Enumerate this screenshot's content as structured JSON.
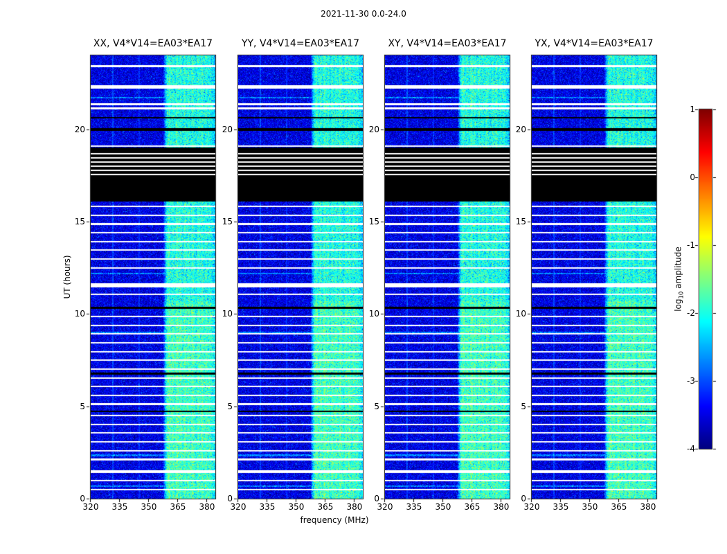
{
  "figure": {
    "title": "2021-11-30 0.0-24.0"
  },
  "chart_data": {
    "type": "heatmap",
    "title": "2021-11-30 0.0-24.0",
    "panels": [
      {
        "id": "XX",
        "title": "XX, V4*V14=EA03*EA17"
      },
      {
        "id": "YY",
        "title": "YY, V4*V14=EA03*EA17"
      },
      {
        "id": "XY",
        "title": "XY, V4*V14=EA03*EA17"
      },
      {
        "id": "YX",
        "title": "YX, V4*V14=EA03*EA17"
      }
    ],
    "x": {
      "label": "frequency (MHz)",
      "range": [
        320,
        384.3
      ],
      "ticks": [
        320,
        335,
        350,
        365,
        380
      ],
      "tick_labels": [
        "320",
        "335",
        "350",
        "365",
        "380"
      ]
    },
    "y": {
      "label": "UT (hours)",
      "range": [
        0,
        24
      ],
      "ticks": [
        0,
        5,
        10,
        15,
        20
      ],
      "tick_labels": [
        "0",
        "5",
        "10",
        "15",
        "20"
      ]
    },
    "colorbar": {
      "label": "log10 amplitude",
      "label_pre": "log",
      "label_sub": "10",
      "label_post": " amplitude",
      "range": [
        -4,
        1
      ],
      "ticks": [
        1,
        0,
        -1,
        -2,
        -3,
        -4
      ],
      "tick_labels": [
        "1",
        "0",
        "-1",
        "-2",
        "-3",
        "-4"
      ],
      "colormap": "jet"
    },
    "background_level": {
      "mean": -3.5,
      "sigma": 0.28
    },
    "rfi": {
      "band": [
        358,
        384.3
      ],
      "bright_below_t": 10.7,
      "bright_boost": 0.18,
      "profile": [
        [
          357.5,
          -3.5
        ],
        [
          358.5,
          -2.6
        ],
        [
          359.5,
          -2.0
        ],
        [
          360.5,
          -1.85
        ],
        [
          361.5,
          -2.1
        ],
        [
          362.5,
          -1.9
        ],
        [
          363.5,
          -2.15
        ],
        [
          364.5,
          -1.8
        ],
        [
          365.5,
          -2.05
        ],
        [
          366.5,
          -1.9
        ],
        [
          367.5,
          -2.2
        ],
        [
          368.5,
          -1.85
        ],
        [
          369.5,
          -2.1
        ],
        [
          370.5,
          -1.9
        ],
        [
          371.5,
          -2.15
        ],
        [
          372.5,
          -1.85
        ],
        [
          373.5,
          -2.05
        ],
        [
          374.5,
          -2.2
        ],
        [
          375.5,
          -1.9
        ],
        [
          376.5,
          -2.1
        ],
        [
          377.5,
          -1.85
        ],
        [
          378.5,
          -2.15
        ],
        [
          379.5,
          -1.95
        ],
        [
          380.5,
          -2.1
        ],
        [
          381.5,
          -2.0
        ],
        [
          382.5,
          -2.2
        ],
        [
          383.5,
          -2.3
        ],
        [
          384.3,
          -2.5
        ]
      ]
    },
    "faint_stripes": [
      {
        "f": 331.5,
        "w": 0.8,
        "level": -3.05
      },
      {
        "f": 345.0,
        "w": 0.7,
        "level": -3.2
      }
    ],
    "black_band": {
      "t0": 16.08,
      "t1": 19.0
    },
    "blank_black_rows": [
      {
        "t": 20.62,
        "w": 0.08
      },
      {
        "t": 19.97,
        "w": 0.15
      },
      {
        "t": 10.32,
        "w": 0.1
      },
      {
        "t": 6.78,
        "w": 0.1
      },
      {
        "t": 4.72,
        "w": 0.1
      }
    ],
    "flagged_white_rows": [
      {
        "t": 23.42,
        "w": 0.08
      },
      {
        "t": 22.3,
        "w": 0.17
      },
      {
        "t": 21.35,
        "w": 0.1
      },
      {
        "t": 21.13,
        "w": 0.1
      },
      {
        "t": 19.08,
        "w": 0.08
      },
      {
        "t": 18.67,
        "w": 0.06
      },
      {
        "t": 18.45,
        "w": 0.06
      },
      {
        "t": 18.22,
        "w": 0.06
      },
      {
        "t": 18.0,
        "w": 0.06
      },
      {
        "t": 17.77,
        "w": 0.06
      },
      {
        "t": 17.55,
        "w": 0.06
      },
      {
        "t": 15.82,
        "w": 0.08
      },
      {
        "t": 15.35,
        "w": 0.08
      },
      {
        "t": 14.87,
        "w": 0.08
      },
      {
        "t": 14.4,
        "w": 0.08
      },
      {
        "t": 13.92,
        "w": 0.08
      },
      {
        "t": 13.45,
        "w": 0.08
      },
      {
        "t": 12.97,
        "w": 0.08
      },
      {
        "t": 12.5,
        "w": 0.08
      },
      {
        "t": 11.55,
        "w": 0.19
      },
      {
        "t": 11.06,
        "w": 0.08
      },
      {
        "t": 9.86,
        "w": 0.08
      },
      {
        "t": 9.37,
        "w": 0.08
      },
      {
        "t": 8.92,
        "w": 0.08
      },
      {
        "t": 8.44,
        "w": 0.08
      },
      {
        "t": 7.95,
        "w": 0.08
      },
      {
        "t": 7.5,
        "w": 0.08
      },
      {
        "t": 7.01,
        "w": 0.08
      },
      {
        "t": 6.52,
        "w": 0.08
      },
      {
        "t": 6.07,
        "w": 0.08
      },
      {
        "t": 5.59,
        "w": 0.08
      },
      {
        "t": 5.12,
        "w": 0.08
      },
      {
        "t": 4.5,
        "w": 0.08
      },
      {
        "t": 4.02,
        "w": 0.08
      },
      {
        "t": 3.55,
        "w": 0.08
      },
      {
        "t": 3.07,
        "w": 0.08
      },
      {
        "t": 2.6,
        "w": 0.08
      },
      {
        "t": 2.12,
        "w": 0.08
      },
      {
        "t": 1.46,
        "w": 0.17
      },
      {
        "t": 0.97,
        "w": 0.08
      },
      {
        "t": 0.5,
        "w": 0.08
      }
    ],
    "bright_rows": [
      {
        "t": 21.72
      },
      {
        "t": 12.18
      },
      {
        "t": 8.98
      },
      {
        "t": 2.35
      },
      {
        "t": 0.68
      }
    ]
  }
}
